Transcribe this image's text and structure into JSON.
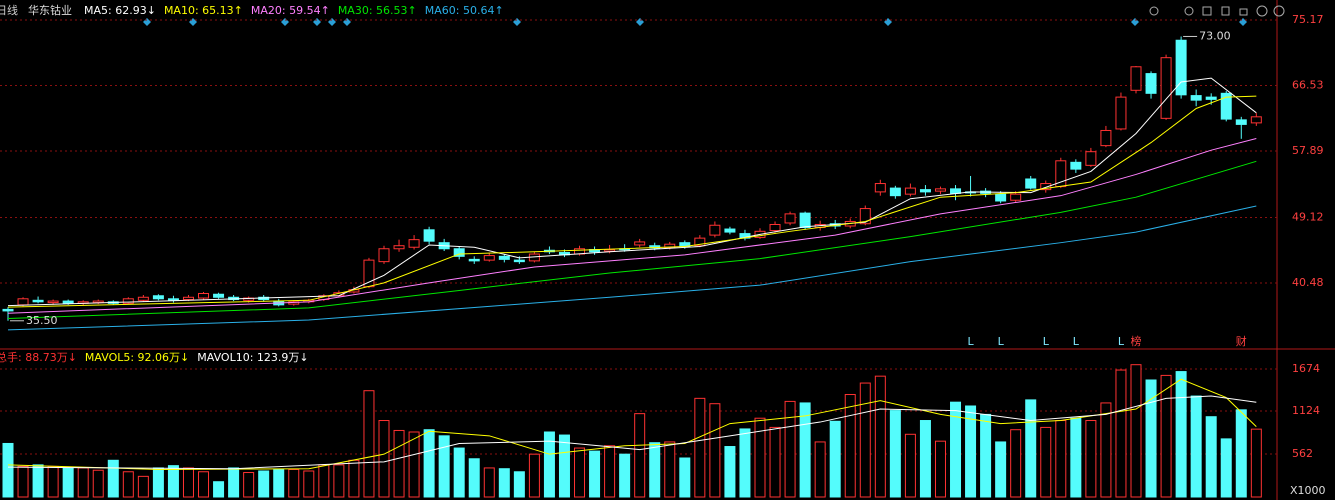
{
  "header": {
    "period": "日线",
    "stock": "华东钴业"
  },
  "chart_data": [
    {
      "type": "candlestick",
      "open": [
        37.0,
        37.6,
        38.2,
        37.9,
        38.1,
        37.8,
        37.9,
        38.0,
        37.8,
        38.2,
        38.8,
        38.4,
        38.3,
        38.5,
        39.0,
        38.6,
        38.2,
        38.6,
        38.1,
        37.7,
        38.0,
        38.3,
        38.8,
        39.3,
        40.0,
        43.3,
        45.0,
        45.2,
        47.5,
        45.8,
        45.0,
        43.6,
        43.5,
        44.0,
        43.5,
        43.4,
        44.8,
        44.5,
        44.3,
        44.9,
        44.7,
        45.0,
        45.5,
        45.4,
        45.1,
        45.8,
        45.4,
        46.8,
        47.6,
        47.0,
        46.5,
        47.4,
        48.4,
        49.7,
        47.8,
        48.3,
        48.0,
        48.3,
        52.5,
        53.0,
        52.2,
        52.8,
        52.6,
        52.9,
        52.5,
        52.6,
        52.2,
        51.4,
        54.2,
        52.8,
        53.2,
        56.4,
        56.0,
        58.6,
        60.8,
        65.9,
        68.1,
        62.2,
        72.5,
        65.2,
        65.0,
        65.5,
        62.0,
        61.6
      ],
      "high": [
        37.3,
        38.6,
        38.7,
        38.3,
        38.3,
        38.2,
        38.3,
        38.2,
        38.6,
        38.9,
        39.0,
        38.8,
        38.9,
        39.3,
        39.2,
        38.9,
        38.7,
        38.9,
        38.4,
        38.2,
        38.4,
        39.0,
        39.5,
        40.0,
        43.8,
        45.4,
        46.2,
        46.8,
        47.9,
        46.3,
        45.3,
        44.0,
        44.5,
        44.3,
        44.0,
        44.6,
        45.3,
        44.9,
        45.4,
        45.3,
        45.5,
        45.6,
        46.3,
        45.8,
        45.9,
        46.1,
        46.8,
        48.6,
        47.9,
        47.5,
        47.7,
        48.6,
        49.9,
        49.9,
        48.7,
        48.8,
        49.0,
        50.7,
        54.1,
        53.3,
        53.6,
        53.4,
        53.2,
        53.4,
        54.6,
        53.0,
        52.6,
        52.6,
        54.6,
        54.0,
        57.0,
        56.8,
        58.3,
        61.2,
        65.6,
        69.1,
        68.4,
        70.6,
        73.0,
        66.0,
        65.5,
        65.8,
        62.4,
        62.9
      ],
      "low": [
        35.5,
        37.4,
        37.8,
        37.6,
        37.6,
        37.5,
        37.7,
        37.6,
        37.7,
        38.0,
        38.2,
        37.9,
        38.1,
        38.3,
        38.4,
        38.1,
        37.9,
        38.0,
        37.4,
        37.5,
        37.8,
        38.1,
        38.6,
        39.1,
        39.8,
        43.0,
        44.6,
        44.9,
        45.6,
        44.7,
        43.6,
        43.0,
        43.3,
        43.2,
        43.0,
        43.2,
        44.3,
        43.9,
        44.1,
        44.2,
        44.4,
        44.6,
        45.2,
        44.8,
        44.9,
        45.0,
        45.2,
        46.5,
        46.9,
        46.1,
        46.3,
        47.1,
        48.1,
        47.5,
        47.4,
        47.6,
        47.7,
        48.1,
        52.0,
        51.6,
        51.9,
        52.0,
        52.2,
        51.4,
        51.9,
        51.8,
        51.0,
        51.1,
        52.8,
        52.4,
        53.0,
        55.0,
        55.8,
        58.4,
        60.6,
        65.5,
        64.8,
        62.0,
        64.8,
        63.8,
        64.0,
        61.8,
        59.5,
        61.2
      ],
      "close": [
        36.8,
        38.4,
        38.0,
        38.1,
        37.8,
        38.0,
        38.1,
        37.8,
        38.4,
        38.6,
        38.4,
        38.2,
        38.6,
        39.1,
        38.6,
        38.3,
        38.5,
        38.3,
        37.6,
        38.0,
        38.2,
        38.8,
        39.2,
        39.6,
        43.5,
        45.0,
        45.4,
        46.2,
        46.0,
        45.0,
        44.0,
        43.4,
        44.1,
        43.6,
        43.3,
        44.3,
        44.6,
        44.2,
        45.0,
        44.6,
        44.9,
        44.9,
        45.9,
        45.1,
        45.6,
        45.3,
        46.4,
        48.1,
        47.2,
        46.4,
        47.3,
        48.2,
        49.6,
        47.8,
        48.2,
        48.0,
        48.6,
        50.3,
        53.6,
        52.0,
        53.0,
        52.5,
        52.9,
        52.3,
        52.4,
        52.3,
        51.3,
        52.2,
        53.0,
        53.6,
        56.6,
        55.5,
        57.8,
        60.6,
        65.0,
        69.0,
        65.5,
        70.2,
        65.3,
        64.6,
        64.7,
        62.1,
        61.4,
        62.4
      ],
      "up_color": "#ff3232",
      "down_color": "#54fcfc",
      "ylim": [
        31.91,
        75.17
      ],
      "yticks": [
        75.17,
        66.53,
        57.89,
        49.12,
        40.48
      ],
      "grid": true,
      "series": [
        {
          "name": "MA5: 62.93↓",
          "color": "#ffffff",
          "x": [
            0,
            22,
            25,
            28,
            31,
            34,
            40,
            46,
            50,
            53,
            57,
            60,
            64,
            68,
            72,
            75,
            78,
            80,
            83
          ],
          "values": [
            37.5,
            38.8,
            41.5,
            45.5,
            45.2,
            43.8,
            44.6,
            45.3,
            46.9,
            47.9,
            48.5,
            51.6,
            52.5,
            52.4,
            55.2,
            60.2,
            67.0,
            67.5,
            62.93
          ]
        },
        {
          "name": "MA10: 65.13↑",
          "color": "#ffff00",
          "x": [
            0,
            20,
            25,
            30,
            35,
            45,
            52,
            57,
            62,
            67,
            72,
            76,
            79,
            81,
            83
          ],
          "values": [
            37.3,
            38.2,
            40.5,
            44.3,
            44.6,
            45.3,
            47.3,
            48.6,
            51.8,
            52.4,
            53.8,
            59.0,
            63.5,
            65.0,
            65.13
          ]
        },
        {
          "name": "MA20: 59.54↑",
          "color": "#ff80ff",
          "x": [
            0,
            20,
            28,
            35,
            45,
            55,
            62,
            70,
            75,
            80,
            83
          ],
          "values": [
            36.5,
            38.0,
            40.5,
            42.6,
            44.2,
            46.8,
            49.6,
            52.0,
            54.8,
            58.0,
            59.54
          ]
        },
        {
          "name": "MA30: 56.53↑",
          "color": "#00e600",
          "x": [
            0,
            20,
            30,
            40,
            50,
            60,
            70,
            75,
            83
          ],
          "values": [
            35.8,
            37.2,
            39.5,
            41.8,
            43.7,
            46.6,
            49.8,
            51.8,
            56.53
          ]
        },
        {
          "name": "MA60: 50.64↑",
          "color": "#2ab0e8",
          "x": [
            0,
            20,
            40,
            50,
            60,
            70,
            75,
            83
          ],
          "values": [
            34.3,
            35.6,
            38.6,
            40.2,
            43.3,
            45.8,
            47.2,
            50.64
          ]
        }
      ],
      "annotations": [
        {
          "index": 78,
          "value": 73.0,
          "label": "73.00"
        },
        {
          "index": 0,
          "value": 35.5,
          "label": "35.50"
        }
      ],
      "events": [
        {
          "index": 64,
          "label": "L",
          "color": "#7fe8ff"
        },
        {
          "index": 66,
          "label": "L",
          "color": "#7fe8ff"
        },
        {
          "index": 69,
          "label": "L",
          "color": "#7fe8ff"
        },
        {
          "index": 71,
          "label": "L",
          "color": "#7fe8ff"
        },
        {
          "index": 74,
          "label": "L",
          "color": "#7fe8ff"
        },
        {
          "index": 75,
          "label": "榜",
          "color": "#ff4040"
        },
        {
          "index": 82,
          "label": "财",
          "color": "#ff4040"
        }
      ]
    },
    {
      "type": "volume",
      "series": [
        {
          "name": "总手: 88.73万↓",
          "color": "#ff3232",
          "values": [
            700,
            400,
            420,
            400,
            380,
            380,
            350,
            480,
            330,
            270,
            380,
            410,
            380,
            330,
            200,
            380,
            320,
            340,
            360,
            360,
            340,
            420,
            420,
            480,
            1390,
            1000,
            870,
            850,
            880,
            800,
            640,
            500,
            380,
            370,
            330,
            560,
            850,
            810,
            640,
            600,
            670,
            560,
            1090,
            710,
            720,
            510,
            1290,
            1220,
            660,
            890,
            1030,
            910,
            1250,
            1230,
            720,
            990,
            1340,
            1490,
            1580,
            1130,
            820,
            1000,
            730,
            1240,
            1190,
            1080,
            720,
            880,
            1270,
            910,
            1000,
            1030,
            1000,
            1230,
            1660,
            1730,
            1530,
            1590,
            1640,
            1320,
            1050,
            760,
            1140,
            887.3
          ]
        },
        {
          "name": "MAVOL5: 92.06万↓",
          "color": "#ffff00",
          "x": [
            0,
            10,
            20,
            25,
            28,
            32,
            36,
            41,
            45,
            48,
            53,
            58,
            62,
            66,
            70,
            75,
            78,
            81,
            83
          ],
          "values": [
            420,
            360,
            370,
            560,
            860,
            800,
            560,
            670,
            700,
            960,
            1060,
            1260,
            1080,
            960,
            1000,
            1150,
            1540,
            1300,
            920.6
          ]
        },
        {
          "name": "MAVOL10: 123.9万↓",
          "color": "#ffffff",
          "x": [
            0,
            15,
            25,
            30,
            36,
            42,
            48,
            54,
            58,
            63,
            68,
            73,
            77,
            80,
            83
          ],
          "values": [
            390,
            370,
            460,
            700,
            730,
            620,
            800,
            980,
            1150,
            1130,
            1000,
            1080,
            1290,
            1320,
            1239
          ]
        }
      ],
      "ylim": [
        0,
        1896
      ],
      "yticks": [
        562,
        1124,
        1674
      ],
      "grid": true,
      "unit_label": "X1000"
    }
  ]
}
